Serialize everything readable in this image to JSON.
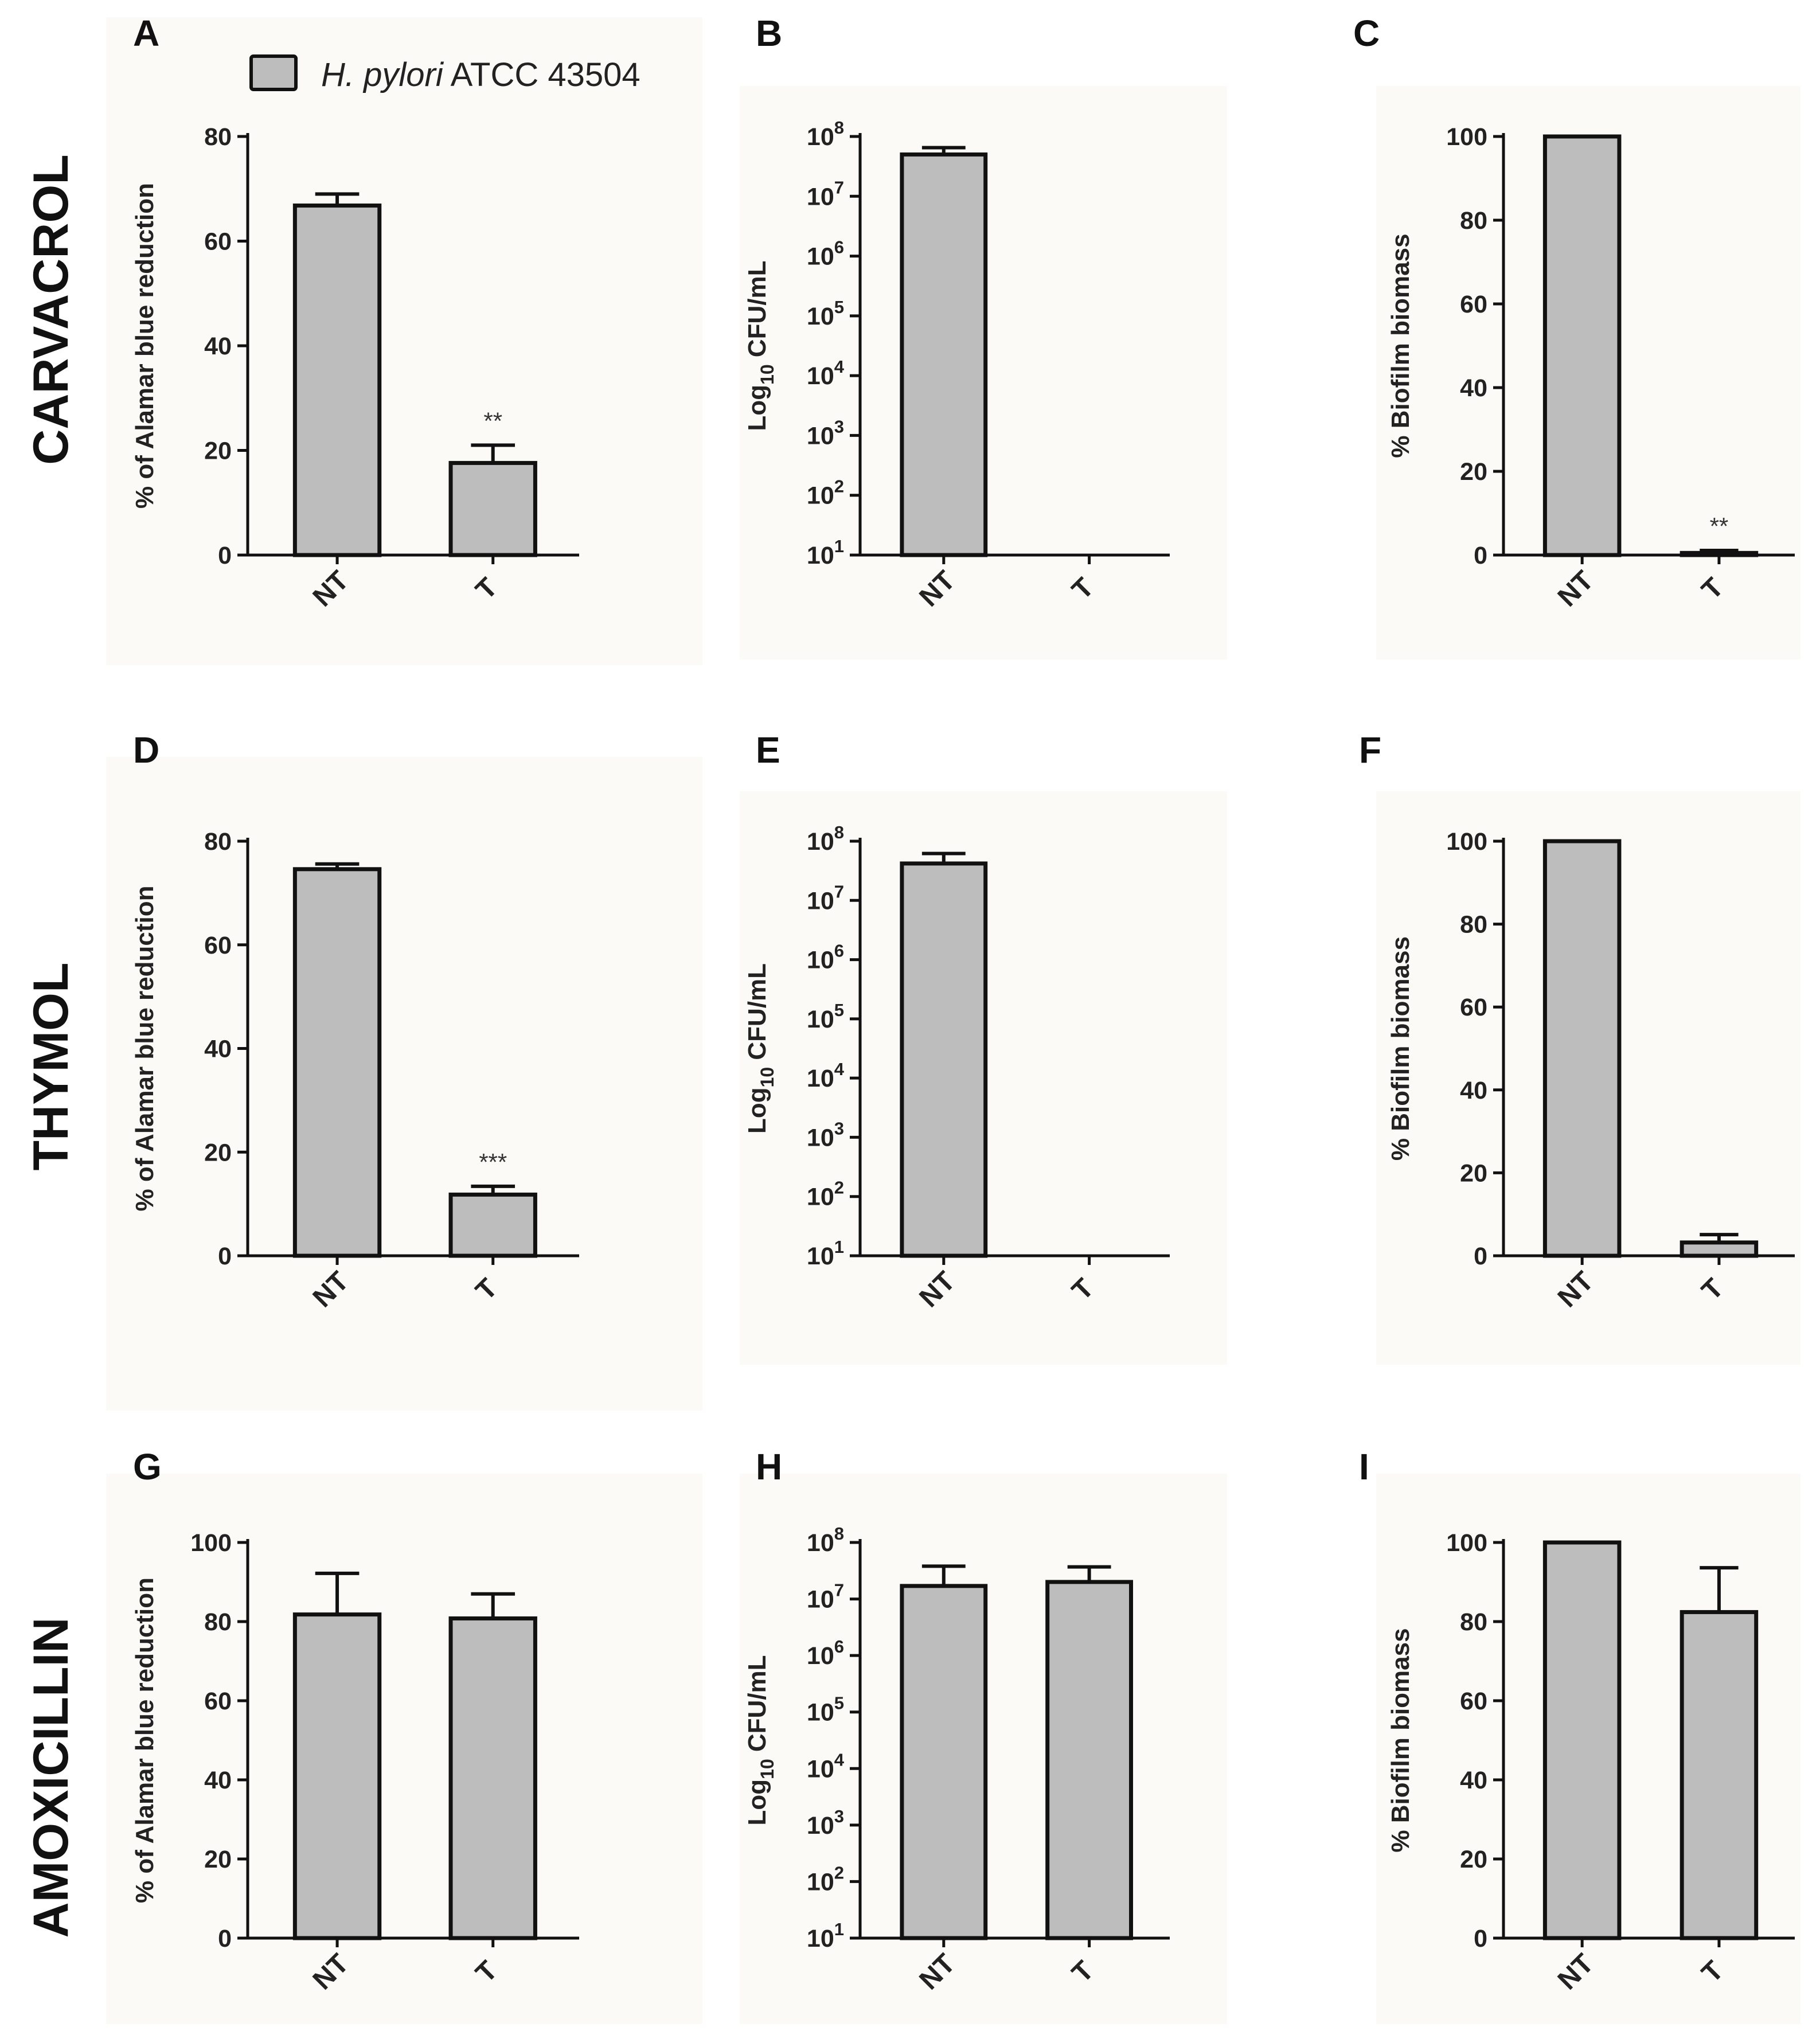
{
  "legend": {
    "label": "H. pylori ATCC 43504",
    "label_italic": "H. pylori",
    "label_rest": " ATCC 43504",
    "color": "#bdbdbd"
  },
  "row_titles": [
    "CARVACROL",
    "THYMOL",
    "AMOXICILLIN"
  ],
  "colors": {
    "bar_fill": "#bdbdbd",
    "stroke": "#111111",
    "panel_bg": "#fcfaf7"
  },
  "chart_data": [
    {
      "panel": "A",
      "type": "bar",
      "row": 0,
      "col": 0,
      "scale": "linear",
      "ylabel": "% of Alamar blue reduction",
      "ylim": [
        0,
        80
      ],
      "yticks": [
        0,
        20,
        40,
        60,
        80
      ],
      "categories": [
        "NT",
        "T"
      ],
      "series": [
        {
          "name": "H. pylori ATCC 43504",
          "values": [
            66.8,
            17.6
          ],
          "errors": [
            2.2,
            3.4
          ]
        }
      ],
      "annotations": [
        "",
        "**"
      ]
    },
    {
      "panel": "B",
      "type": "bar",
      "row": 0,
      "col": 1,
      "scale": "log",
      "ylabel": "Log10 CFU/mL",
      "ylim_exp": [
        1,
        8
      ],
      "yticks_exp": [
        1,
        2,
        3,
        4,
        5,
        6,
        7,
        8
      ],
      "categories": [
        "NT",
        "T"
      ],
      "series": [
        {
          "name": "H. pylori ATCC 43504",
          "values": [
            50000000,
            0
          ],
          "errors_upper": [
            65000000,
            0
          ]
        }
      ],
      "annotations": [
        "",
        ""
      ]
    },
    {
      "panel": "C",
      "type": "bar",
      "row": 0,
      "col": 2,
      "scale": "linear",
      "ylabel": "% Biofilm biomass",
      "ylim": [
        0,
        100
      ],
      "yticks": [
        0,
        20,
        40,
        60,
        80,
        100
      ],
      "categories": [
        "NT",
        "T"
      ],
      "series": [
        {
          "name": "H. pylori ATCC 43504",
          "values": [
            100,
            0.5
          ],
          "errors": [
            0,
            0.6
          ]
        }
      ],
      "annotations": [
        "",
        "**"
      ]
    },
    {
      "panel": "D",
      "type": "bar",
      "row": 1,
      "col": 0,
      "scale": "linear",
      "ylabel": "% of Alamar blue reduction",
      "ylim": [
        0,
        80
      ],
      "yticks": [
        0,
        20,
        40,
        60,
        80
      ],
      "categories": [
        "NT",
        "T"
      ],
      "series": [
        {
          "name": "H. pylori ATCC 43504",
          "values": [
            74.6,
            11.8
          ],
          "errors": [
            1.0,
            1.6
          ]
        }
      ],
      "annotations": [
        "",
        "***"
      ]
    },
    {
      "panel": "E",
      "type": "bar",
      "row": 1,
      "col": 1,
      "scale": "log",
      "ylabel": "Log10 CFU/mL",
      "ylim_exp": [
        1,
        8
      ],
      "yticks_exp": [
        1,
        2,
        3,
        4,
        5,
        6,
        7,
        8
      ],
      "categories": [
        "NT",
        "T"
      ],
      "series": [
        {
          "name": "H. pylori ATCC 43504",
          "values": [
            42000000,
            0
          ],
          "errors_upper": [
            62000000,
            0
          ]
        }
      ],
      "annotations": [
        "",
        ""
      ]
    },
    {
      "panel": "F",
      "type": "bar",
      "row": 1,
      "col": 2,
      "scale": "linear",
      "ylabel": "% Biofilm biomass",
      "ylim": [
        0,
        100
      ],
      "yticks": [
        0,
        20,
        40,
        60,
        80,
        100
      ],
      "categories": [
        "NT",
        "T"
      ],
      "series": [
        {
          "name": "H. pylori ATCC 43504",
          "values": [
            100,
            3.2
          ],
          "errors": [
            0,
            1.9
          ]
        }
      ],
      "annotations": [
        "",
        ""
      ]
    },
    {
      "panel": "G",
      "type": "bar",
      "row": 2,
      "col": 0,
      "scale": "linear",
      "ylabel": "% of Alamar blue reduction",
      "ylim": [
        0,
        100
      ],
      "yticks": [
        0,
        20,
        40,
        60,
        80,
        100
      ],
      "categories": [
        "NT",
        "T"
      ],
      "series": [
        {
          "name": "H. pylori ATCC 43504",
          "values": [
            81.8,
            80.8
          ],
          "errors": [
            10.4,
            6.2
          ]
        }
      ],
      "annotations": [
        "",
        ""
      ]
    },
    {
      "panel": "H",
      "type": "bar",
      "row": 2,
      "col": 1,
      "scale": "log",
      "ylabel": "Log10 CFU/mL",
      "ylim_exp": [
        1,
        8
      ],
      "yticks_exp": [
        1,
        2,
        3,
        4,
        5,
        6,
        7,
        8
      ],
      "categories": [
        "NT",
        "T"
      ],
      "series": [
        {
          "name": "H. pylori ATCC 43504",
          "values": [
            17000000,
            20000000
          ],
          "errors_upper": [
            38000000,
            37000000
          ]
        }
      ],
      "annotations": [
        "",
        ""
      ]
    },
    {
      "panel": "I",
      "type": "bar",
      "row": 2,
      "col": 2,
      "scale": "linear",
      "ylabel": "% Biofilm biomass",
      "ylim": [
        0,
        100
      ],
      "yticks": [
        0,
        20,
        40,
        60,
        80,
        100
      ],
      "categories": [
        "NT",
        "T"
      ],
      "series": [
        {
          "name": "H. pylori ATCC 43504",
          "values": [
            100,
            82.4
          ],
          "errors": [
            0,
            11.2
          ]
        }
      ],
      "annotations": [
        "",
        ""
      ]
    }
  ]
}
